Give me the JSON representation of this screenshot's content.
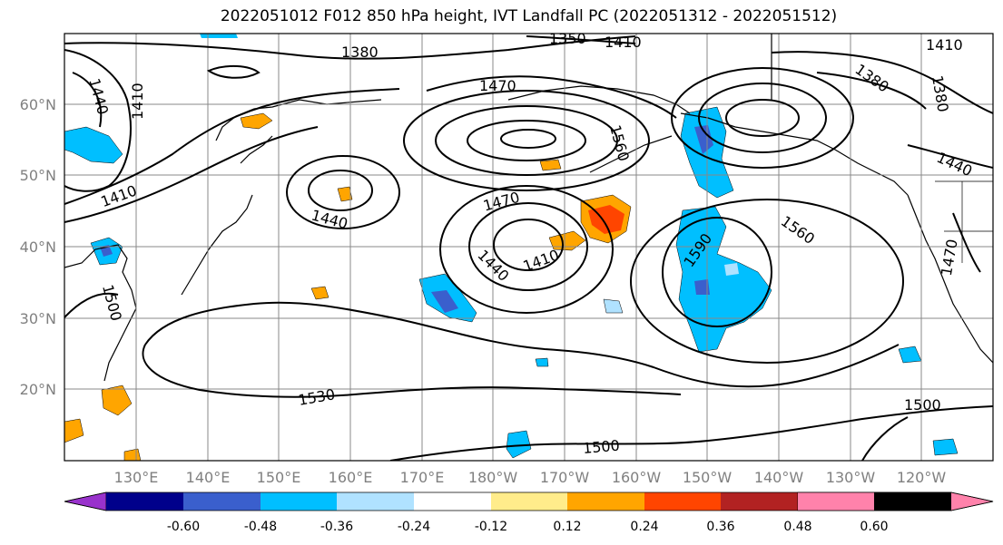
{
  "title": "2022051012 F012 850 hPa height, IVT Landfall PC (2022051312 - 2022051512)",
  "lat_labels": [
    "60°N",
    "50°N",
    "40°N",
    "30°N",
    "20°N"
  ],
  "lon_labels": [
    "130°E",
    "140°E",
    "150°E",
    "160°E",
    "170°E",
    "180°W",
    "170°W",
    "160°W",
    "150°W",
    "140°W",
    "130°W",
    "120°W"
  ],
  "contour_labels": [
    "1350",
    "1410",
    "1380",
    "1440",
    "1410",
    "1470",
    "1560",
    "1380",
    "1380",
    "1410",
    "1440",
    "1410",
    "1440",
    "1470",
    "1410",
    "1440",
    "1560",
    "1590",
    "1470",
    "1500",
    "1530",
    "1500",
    "1500"
  ],
  "colorbar": {
    "tick_labels": [
      "-0.60",
      "-0.48",
      "-0.36",
      "-0.24",
      "-0.12",
      "0.12",
      "0.24",
      "0.36",
      "0.48",
      "0.60"
    ],
    "colors": [
      "#9932CC",
      "#00008B",
      "#3A5FCD",
      "#00BFFF",
      "#B0E2FF",
      "#FFFFFF",
      "#FFEC8B",
      "#FFA500",
      "#FF4500",
      "#B22222",
      "#FF82AB"
    ]
  }
}
